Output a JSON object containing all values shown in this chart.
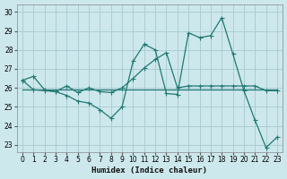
{
  "xlabel": "Humidex (Indice chaleur)",
  "xlim": [
    -0.5,
    23.5
  ],
  "ylim": [
    22.6,
    30.4
  ],
  "yticks": [
    23,
    24,
    25,
    26,
    27,
    28,
    29,
    30
  ],
  "xticks": [
    0,
    1,
    2,
    3,
    4,
    5,
    6,
    7,
    8,
    9,
    10,
    11,
    12,
    13,
    14,
    15,
    16,
    17,
    18,
    19,
    20,
    21,
    22,
    23
  ],
  "background_color": "#cde8ec",
  "grid_color": "#aacdd4",
  "line_color": "#1f7872",
  "line1_y": [
    26.4,
    26.6,
    25.9,
    25.8,
    25.6,
    25.3,
    25.2,
    24.85,
    24.4,
    25.0,
    27.4,
    28.3,
    28.0,
    25.7,
    25.65,
    28.9,
    28.65,
    28.75,
    29.7,
    27.8,
    25.85,
    24.3,
    22.85,
    23.4
  ],
  "line2_y": [
    25.9,
    25.9,
    25.9,
    25.9,
    25.9,
    25.9,
    25.9,
    25.9,
    25.9,
    25.9,
    25.9,
    25.9,
    25.9,
    25.9,
    25.9,
    25.9,
    25.9,
    25.9,
    25.9,
    25.9,
    25.9,
    25.9,
    25.9,
    25.9
  ],
  "line3_y": [
    26.4,
    25.9,
    25.85,
    25.8,
    26.1,
    25.75,
    26.0,
    25.8,
    25.75,
    26.0,
    26.5,
    27.05,
    27.5,
    27.85,
    26.0,
    26.1,
    26.1,
    26.1,
    26.1,
    26.1,
    26.1,
    26.1,
    25.85,
    25.85
  ]
}
